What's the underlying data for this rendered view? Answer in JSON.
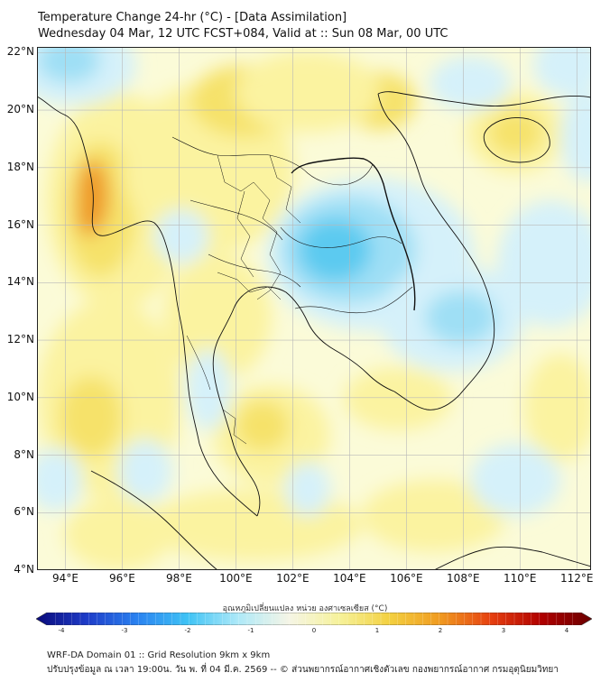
{
  "header": {
    "title_line1": "Temperature Change 24-hr (°C) - [Data Assimilation]",
    "title_line2": "Wednesday 04 Mar, 12 UTC FCST+084, Valid at :: Sun 08 Mar, 00 UTC"
  },
  "map": {
    "lat_labels": [
      "22°N",
      "20°N",
      "18°N",
      "16°N",
      "14°N",
      "12°N",
      "10°N",
      "8°N",
      "6°N",
      "4°N"
    ],
    "lon_labels": [
      "94°E",
      "96°E",
      "98°E",
      "100°E",
      "102°E",
      "104°E",
      "106°E",
      "108°E",
      "110°E",
      "112°E"
    ],
    "lat_range": [
      4,
      22.2
    ],
    "lon_range": [
      93,
      112.5
    ],
    "colors": {
      "neutral": "#fbfbd8",
      "warm_light": "#fbf3a0",
      "warm": "#f6e26a",
      "warm_strong": "#f3c24a",
      "hot": "#ef9a28",
      "cool_light": "#d5f1fa",
      "cool": "#9fdff5",
      "cool_strong": "#5ccaf0",
      "grid": "#b8b8b8",
      "coast": "#111111"
    }
  },
  "colorbar": {
    "label": "อุณหภูมิเปลี่ยนแปลง หน่วย องศาเซลเซียส (°C)",
    "ticks": [
      "-4",
      "-3",
      "-2",
      "-1",
      "0",
      "1",
      "2",
      "3",
      "4"
    ],
    "range": [
      -4,
      4
    ],
    "colors": [
      "#0a0a7a",
      "#1e3cc8",
      "#2a82f0",
      "#3fc3f5",
      "#aee9f8",
      "#f5f5e6",
      "#f6f29a",
      "#f3d040",
      "#f09a20",
      "#e64010",
      "#b00000",
      "#6a0000"
    ]
  },
  "footer": {
    "line1": "WRF-DA Domain 01 :: Grid Resolution 9km x 9km",
    "line2": "ปรับปรุงข้อมูล ณ เวลา 19:00น. วัน พ. ที่ 04 มี.ค. 2569 -- © ส่วนพยากรณ์อากาศเชิงตัวเลข กองพยากรณ์อากาศ กรมอุตุนิยมวิทยา"
  }
}
